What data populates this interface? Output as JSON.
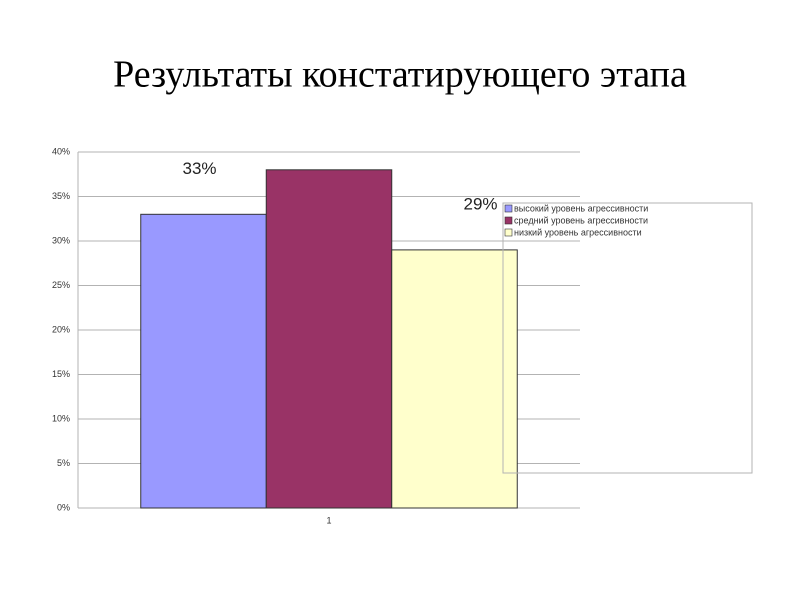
{
  "chart_data": {
    "type": "bar",
    "title": "Результаты констатирующего этапа",
    "categories": [
      "1"
    ],
    "series": [
      {
        "name": "высокий уровень агрессивности",
        "color": "#9999ff",
        "values": [
          33
        ],
        "value_labels": [
          "33%"
        ]
      },
      {
        "name": "средний уровень агрессивности",
        "color": "#993366",
        "values": [
          38
        ]
      },
      {
        "name": "низкий уровень агрессивности",
        "color": "#ffffcc",
        "values": [
          29
        ],
        "value_labels": [
          "29%"
        ]
      }
    ],
    "ylim": [
      0,
      40
    ],
    "yticks": [
      {
        "value": 0,
        "label": "0%"
      },
      {
        "value": 5,
        "label": "5%"
      },
      {
        "value": 10,
        "label": "10%"
      },
      {
        "value": 15,
        "label": "15%"
      },
      {
        "value": 20,
        "label": "20%"
      },
      {
        "value": 25,
        "label": "25%"
      },
      {
        "value": 30,
        "label": "30%"
      },
      {
        "value": 35,
        "label": "35%"
      },
      {
        "value": 40,
        "label": "40%"
      }
    ],
    "grid": true,
    "legend": "right"
  }
}
